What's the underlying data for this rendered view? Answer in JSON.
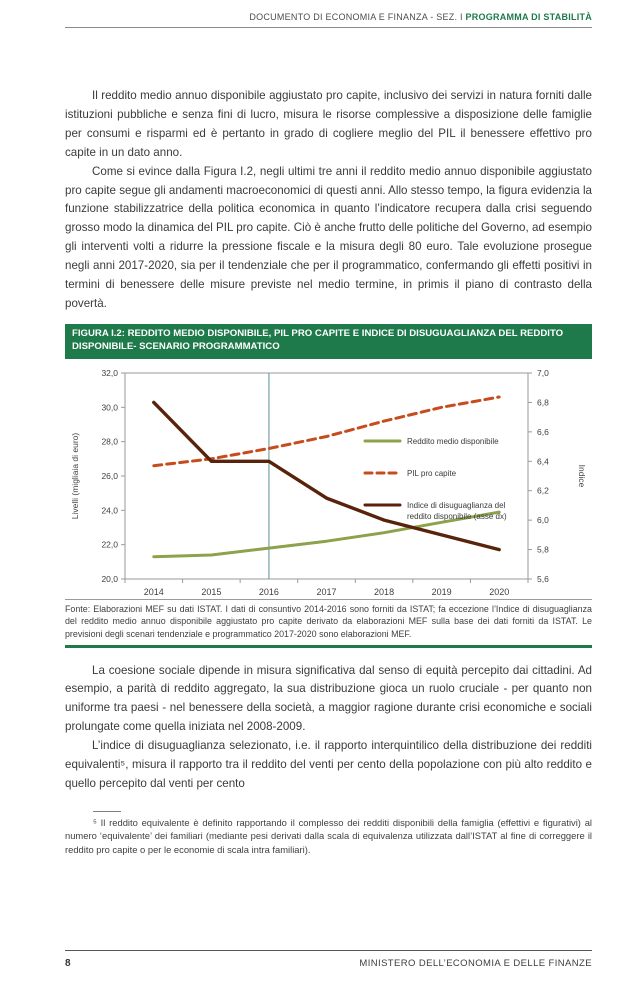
{
  "header": {
    "doc_title": "DOCUMENTO DI ECONOMIA E FINANZA - SEZ. I ",
    "section_title": "PROGRAMMA DI STABILITÀ"
  },
  "paragraphs": {
    "p1": "Il reddito medio annuo disponibile aggiustato pro capite, inclusivo dei servizi in natura forniti dalle istituzioni pubbliche e senza fini di lucro, misura le risorse complessive a disposizione delle famiglie per consumi e risparmi ed è pertanto in grado di cogliere meglio del PIL il benessere effettivo pro capite in un dato anno.",
    "p2": "Come si evince dalla Figura I.2, negli ultimi tre anni il reddito medio annuo disponibile aggiustato pro capite segue gli andamenti macroeconomici di questi anni. Allo stesso tempo, la figura evidenzia la funzione stabilizzatrice della politica economica in quanto l’indicatore recupera dalla crisi seguendo grosso modo la dinamica del PIL pro capite. Ciò è anche frutto delle politiche del Governo, ad esempio gli interventi volti a ridurre la pressione fiscale e la misura degli 80 euro. Tale evoluzione prosegue negli anni 2017-2020, sia per il tendenziale che per il programmatico, confermando gli effetti positivi in termini di benessere delle misure previste nel medio termine, in primis il piano di contrasto della povertà.",
    "p3": "La coesione sociale dipende in misura significativa dal senso di equità percepito dai cittadini. Ad esempio, a parità di reddito aggregato, la sua distribuzione gioca un ruolo cruciale - per quanto non uniforme tra paesi - nel benessere della società, a maggior ragione durante crisi economiche e sociali prolungate come quella iniziata nel 2008-2009.",
    "p4": "L’indice di disuguaglianza selezionato, i.e. il rapporto interquintilico della distribuzione dei redditi equivalenti⁵, misura il rapporto tra il reddito del venti per cento della popolazione con più alto reddito e quello percepito dal venti per cento"
  },
  "figure": {
    "title": "FIGURA I.2: REDDITO MEDIO DISPONIBILE, PIL PRO CAPITE E INDICE DI DISUGUAGLIANZA DEL REDDITO DISPONIBILE- SCENARIO PROGRAMMATICO",
    "fonte": "Fonte: Elaborazioni MEF su dati ISTAT. I dati di consuntivo 2014-2016 sono forniti da ISTAT; fa eccezione l’Indice di disuguaglianza del reddito medio annuo disponibile aggiustato pro capite derivato da elaborazioni MEF sulla base dei dati forniti da ISTAT. Le previsioni degli scenari tendenziale e programmatico 2017-2020 sono elaborazioni MEF."
  },
  "chart_data": {
    "type": "line",
    "categories": [
      2014,
      2015,
      2016,
      2017,
      2018,
      2019,
      2020
    ],
    "xticks": [
      "2014",
      "2015",
      "2016",
      "2017",
      "2018",
      "2019",
      "2020"
    ],
    "series": [
      {
        "name": "Reddito medio disponibile",
        "axis": "left",
        "style": "solid",
        "color": "#8da24b",
        "values": [
          21.3,
          21.4,
          21.8,
          22.2,
          22.7,
          23.3,
          23.9
        ]
      },
      {
        "name": "PIL pro capite",
        "axis": "left",
        "style": "dashed",
        "color": "#c64b1d",
        "values": [
          26.6,
          27.0,
          27.6,
          28.3,
          29.2,
          30.0,
          30.6
        ]
      },
      {
        "name": "Indice di disuguaglianza del reddito disponibile (asse dx)",
        "axis": "right",
        "style": "solid",
        "color": "#58230a",
        "values": [
          6.8,
          6.4,
          6.4,
          6.15,
          6.0,
          5.9,
          5.8
        ]
      }
    ],
    "ylabel_left": "Livelli  (migliaia di euro)",
    "ylabel_right": "Indice",
    "ylim_left": [
      20.0,
      32.0
    ],
    "ytick_step_left": 2.0,
    "yticks_left": [
      "20,0",
      "22,0",
      "24,0",
      "26,0",
      "28,0",
      "30,0",
      "32,0"
    ],
    "ylim_right": [
      5.6,
      7.0
    ],
    "ytick_step_right": 0.2,
    "yticks_right": [
      "5,6",
      "5,8",
      "6,0",
      "6,2",
      "6,4",
      "6,6",
      "6,8",
      "7,0"
    ],
    "vline_x": 2016,
    "vline_color": "#74a2a5",
    "grid": false,
    "legend_position": "center-right"
  },
  "footnote": {
    "text": "⁵ Il reddito equivalente è definito rapportando il complesso dei redditi disponibili della famiglia (effettivi e figurativi) al numero ‘equivalente’ dei familiari (mediante pesi derivati dalla scala di equivalenza utilizzata dall’ISTAT al fine di correggere il reddito pro capite o per le economie di scala intra familiari)."
  },
  "footer": {
    "page_number": "8",
    "ministry": "MINISTERO DELL’ECONOMIA E DELLE FINANZE"
  },
  "colors": {
    "accent_green": "#1e7a4a",
    "body_text": "#3b3b3b"
  }
}
